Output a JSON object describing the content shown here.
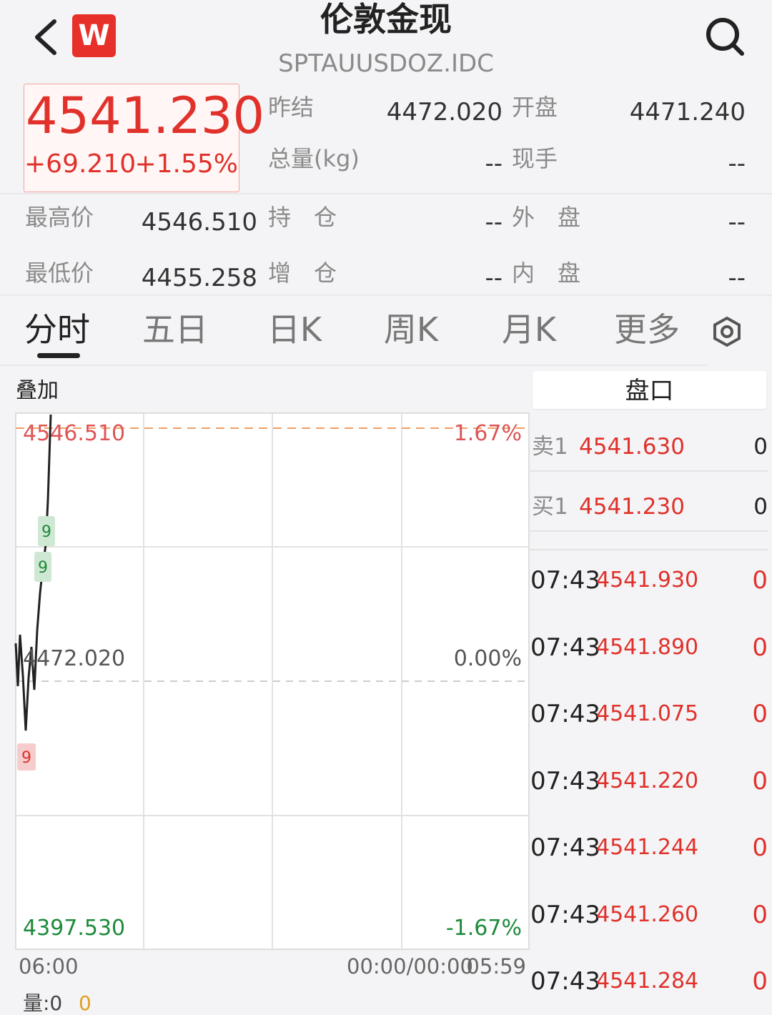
{
  "header": {
    "logo": "W",
    "title": "伦敦金现",
    "subtitle": "SPTAUUSDOZ.IDC"
  },
  "quote": {
    "price": "4541.230",
    "change": "+69.210",
    "change_pct": "+1.55%"
  },
  "stats": [
    {
      "label": "昨结",
      "value": "4472.020"
    },
    {
      "label": "开盘",
      "value": "4471.240"
    },
    {
      "label": "总量(kg)",
      "value": "--"
    },
    {
      "label": "现手",
      "value": "--"
    },
    {
      "label": "最高价",
      "value": "4546.510"
    },
    {
      "label": "持　仓",
      "value": "--"
    },
    {
      "label": "外　盘",
      "value": "--"
    },
    {
      "label": "最低价",
      "value": "4455.258"
    },
    {
      "label": "增　仓",
      "value": "--"
    },
    {
      "label": "内　盘",
      "value": "--"
    }
  ],
  "tabs": [
    "分时",
    "五日",
    "日K",
    "周K",
    "月K",
    "更多"
  ],
  "chart": {
    "overlay": "叠加",
    "high": "4546.510",
    "high_pct": "1.67%",
    "mid": "4472.020",
    "mid_pct": "0.00%",
    "low": "4397.530",
    "low_pct": "-1.67%",
    "x_start": "06:00",
    "x_cursor": "00:00/00:00",
    "x_end": "05:59",
    "markers": [
      "9",
      "9",
      "9"
    ],
    "volume": "量:0",
    "volume_value": "0"
  },
  "order_book": {
    "title": "盘口",
    "levels": [
      {
        "label": "卖1",
        "price": "4541.630",
        "volume": "0"
      },
      {
        "label": "买1",
        "price": "4541.230",
        "volume": "0"
      }
    ],
    "trades": [
      {
        "time": "07:43",
        "price": "4541.930",
        "volume": "0"
      },
      {
        "time": "07:43",
        "price": "4541.890",
        "volume": "0"
      },
      {
        "time": "07:43",
        "price": "4541.075",
        "volume": "0"
      },
      {
        "time": "07:43",
        "price": "4541.220",
        "volume": "0"
      },
      {
        "time": "07:43",
        "price": "4541.244",
        "volume": "0"
      },
      {
        "time": "07:43",
        "price": "4541.260",
        "volume": "0"
      },
      {
        "time": "07:43",
        "price": "4541.284",
        "volume": "0"
      }
    ]
  }
}
